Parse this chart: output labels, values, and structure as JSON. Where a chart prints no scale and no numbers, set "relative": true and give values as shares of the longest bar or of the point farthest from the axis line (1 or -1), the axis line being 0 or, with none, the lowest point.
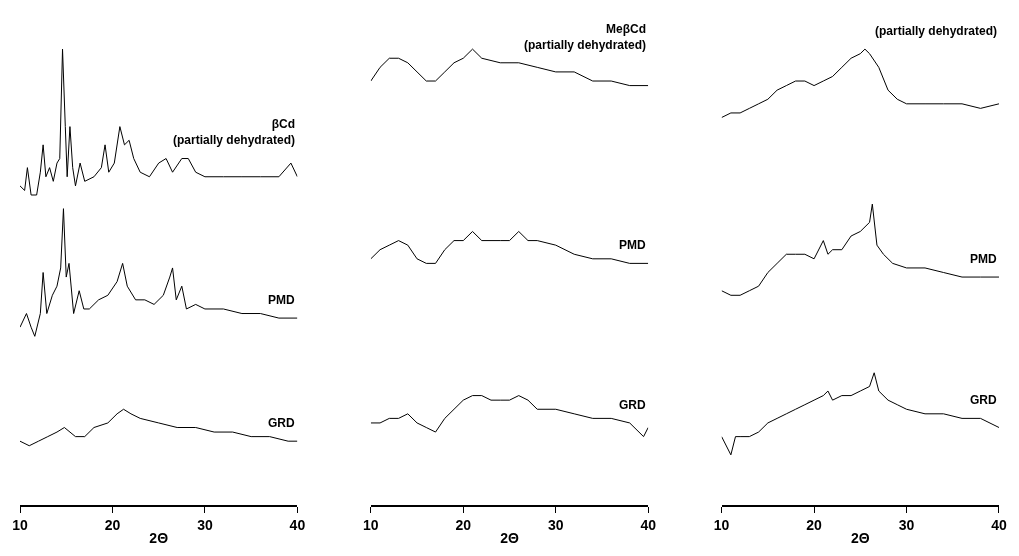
{
  "chart_data": [
    {
      "type": "line",
      "relative": true,
      "xlabel": "2Θ",
      "xlim": [
        10,
        40
      ],
      "xticks": [
        10,
        20,
        30,
        40
      ],
      "marker": "none",
      "line_style": "solid",
      "series": [
        {
          "name": "βCd\n(partially dehydrated)",
          "color": "#000000",
          "x": [
            10,
            10.5,
            10.8,
            11.2,
            11.8,
            12.2,
            12.5,
            12.8,
            13.2,
            13.6,
            14.0,
            14.3,
            14.6,
            14.9,
            15.1,
            15.4,
            15.7,
            16.0,
            16.5,
            17.0,
            18,
            18.8,
            19.2,
            19.6,
            20.2,
            20.8,
            21.3,
            21.8,
            22.3,
            23,
            24,
            25,
            25.8,
            26.5,
            27.5,
            28.2,
            29,
            30,
            32,
            34,
            36,
            38,
            39.3,
            40
          ],
          "values": [
            0.7,
            0.69,
            0.74,
            0.68,
            0.68,
            0.73,
            0.79,
            0.72,
            0.74,
            0.71,
            0.75,
            0.76,
            1.0,
            0.83,
            0.72,
            0.83,
            0.74,
            0.7,
            0.75,
            0.71,
            0.72,
            0.74,
            0.79,
            0.73,
            0.75,
            0.83,
            0.79,
            0.8,
            0.76,
            0.73,
            0.72,
            0.75,
            0.76,
            0.73,
            0.76,
            0.76,
            0.73,
            0.72,
            0.72,
            0.72,
            0.72,
            0.72,
            0.75,
            0.72
          ]
        },
        {
          "name": "PMD",
          "color": "#000000",
          "x": [
            10,
            10.7,
            11.2,
            11.6,
            12.2,
            12.5,
            12.9,
            13.5,
            14.0,
            14.4,
            14.7,
            15.0,
            15.3,
            15.8,
            16.4,
            16.9,
            17.5,
            18.5,
            19.5,
            20.5,
            21.1,
            21.6,
            22.5,
            23.5,
            24.5,
            25.5,
            26.2,
            26.5,
            26.9,
            27.5,
            28,
            29,
            30,
            32,
            34,
            36,
            38,
            40
          ],
          "values": [
            0.39,
            0.42,
            0.39,
            0.37,
            0.42,
            0.51,
            0.42,
            0.46,
            0.48,
            0.52,
            0.65,
            0.5,
            0.53,
            0.42,
            0.47,
            0.43,
            0.43,
            0.45,
            0.46,
            0.49,
            0.53,
            0.48,
            0.45,
            0.45,
            0.44,
            0.46,
            0.5,
            0.52,
            0.45,
            0.48,
            0.43,
            0.44,
            0.43,
            0.43,
            0.42,
            0.42,
            0.41,
            0.41
          ]
        },
        {
          "name": "GRD",
          "color": "#000000",
          "x": [
            10,
            11,
            12,
            13,
            14,
            14.8,
            16,
            17,
            18,
            19.5,
            20.5,
            21.2,
            22,
            23,
            25,
            27,
            29,
            31,
            33,
            35,
            37,
            39,
            40
          ],
          "values": [
            0.14,
            0.13,
            0.14,
            0.15,
            0.16,
            0.17,
            0.15,
            0.15,
            0.17,
            0.18,
            0.2,
            0.21,
            0.2,
            0.19,
            0.18,
            0.17,
            0.17,
            0.16,
            0.16,
            0.15,
            0.15,
            0.14,
            0.14
          ]
        }
      ]
    },
    {
      "type": "line",
      "relative": true,
      "xlabel": "2Θ",
      "xlim": [
        10,
        40
      ],
      "xticks": [
        10,
        20,
        30,
        40
      ],
      "marker": "none",
      "line_style": "solid",
      "series": [
        {
          "name": "MeβCd\n(partially dehydrated)",
          "color": "#000000",
          "x": [
            10,
            11,
            12,
            13,
            14,
            15,
            16,
            17,
            18,
            19,
            20,
            21,
            22,
            24,
            26,
            28,
            30,
            32,
            34,
            36,
            38,
            40
          ],
          "values": [
            0.93,
            0.96,
            0.98,
            0.98,
            0.97,
            0.95,
            0.93,
            0.93,
            0.95,
            0.97,
            0.98,
            1.0,
            0.98,
            0.97,
            0.97,
            0.96,
            0.95,
            0.95,
            0.93,
            0.93,
            0.92,
            0.92
          ]
        },
        {
          "name": "PMD",
          "color": "#000000",
          "x": [
            10,
            11,
            12,
            13,
            14,
            15,
            16,
            17,
            18,
            19,
            20,
            21,
            22,
            23,
            24,
            25,
            26,
            27,
            28,
            30,
            32,
            34,
            36,
            38,
            40
          ],
          "values": [
            0.54,
            0.56,
            0.57,
            0.58,
            0.57,
            0.54,
            0.53,
            0.53,
            0.56,
            0.58,
            0.58,
            0.6,
            0.58,
            0.58,
            0.58,
            0.58,
            0.6,
            0.58,
            0.58,
            0.57,
            0.55,
            0.54,
            0.54,
            0.53,
            0.53
          ]
        },
        {
          "name": "GRD",
          "color": "#000000",
          "x": [
            10,
            11,
            12,
            13,
            14,
            15,
            16,
            17,
            18,
            19,
            20,
            21,
            22,
            23,
            24,
            25,
            26,
            27,
            28,
            30,
            32,
            34,
            36,
            38,
            39.5,
            40
          ],
          "values": [
            0.18,
            0.18,
            0.19,
            0.19,
            0.2,
            0.18,
            0.17,
            0.16,
            0.19,
            0.21,
            0.23,
            0.24,
            0.24,
            0.23,
            0.23,
            0.23,
            0.24,
            0.23,
            0.21,
            0.21,
            0.2,
            0.19,
            0.19,
            0.18,
            0.15,
            0.17
          ]
        }
      ]
    },
    {
      "type": "line",
      "relative": true,
      "xlabel": "2Θ",
      "xlim": [
        10,
        40
      ],
      "xticks": [
        10,
        20,
        30,
        40
      ],
      "marker": "none",
      "line_style": "solid",
      "series": [
        {
          "name": "(partially dehydrated)",
          "color": "#000000",
          "x": [
            10,
            11,
            12,
            13,
            14,
            15,
            16,
            17,
            18,
            19,
            20,
            21,
            22,
            23,
            24,
            25,
            25.5,
            26,
            27,
            28,
            29,
            30,
            32,
            34,
            36,
            38,
            40
          ],
          "values": [
            0.85,
            0.86,
            0.86,
            0.87,
            0.88,
            0.89,
            0.91,
            0.92,
            0.93,
            0.93,
            0.92,
            0.93,
            0.94,
            0.96,
            0.98,
            0.99,
            1.0,
            0.99,
            0.96,
            0.91,
            0.89,
            0.88,
            0.88,
            0.88,
            0.88,
            0.87,
            0.88
          ]
        },
        {
          "name": "PMD",
          "color": "#000000",
          "x": [
            10,
            11,
            12,
            13,
            14,
            15,
            16,
            17,
            18,
            19,
            20,
            21,
            21.5,
            22,
            23,
            24,
            25,
            26,
            26.3,
            26.8,
            27.5,
            28.5,
            30,
            32,
            34,
            36,
            38,
            40
          ],
          "values": [
            0.47,
            0.46,
            0.46,
            0.47,
            0.48,
            0.51,
            0.53,
            0.55,
            0.55,
            0.55,
            0.54,
            0.58,
            0.55,
            0.56,
            0.56,
            0.59,
            0.6,
            0.62,
            0.66,
            0.57,
            0.55,
            0.53,
            0.52,
            0.52,
            0.51,
            0.5,
            0.5,
            0.5
          ]
        },
        {
          "name": "GRD",
          "color": "#000000",
          "x": [
            10,
            11,
            11.5,
            12,
            13,
            14,
            15,
            16,
            17,
            18,
            19,
            20,
            21,
            21.5,
            22,
            23,
            24,
            25,
            26,
            26.5,
            27,
            28,
            29,
            30,
            32,
            34,
            36,
            38,
            40
          ],
          "values": [
            0.15,
            0.11,
            0.15,
            0.15,
            0.15,
            0.16,
            0.18,
            0.19,
            0.2,
            0.21,
            0.22,
            0.23,
            0.24,
            0.25,
            0.23,
            0.24,
            0.24,
            0.25,
            0.26,
            0.29,
            0.25,
            0.23,
            0.22,
            0.21,
            0.2,
            0.2,
            0.19,
            0.19,
            0.17
          ]
        }
      ]
    }
  ]
}
